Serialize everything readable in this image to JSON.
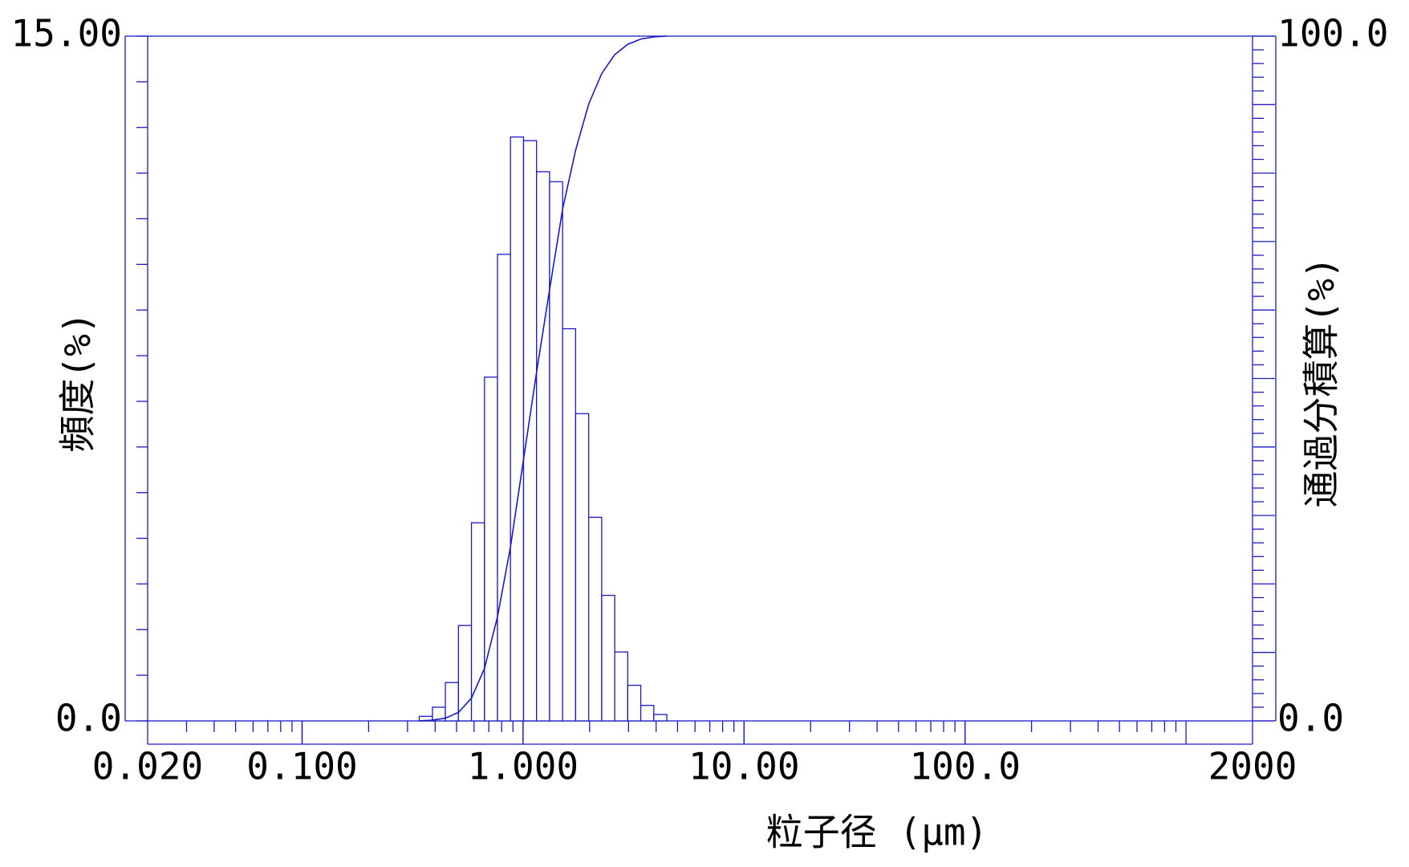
{
  "chart_data": {
    "type": "histogram",
    "xlabel": "粒子径 (μm)",
    "ylabel": "頻度(%)",
    "y2label": "通過分積算(%)",
    "xscale": "log",
    "xlim": [
      0.02,
      2000
    ],
    "xticks": [
      {
        "value": 0.02,
        "label": "0.020"
      },
      {
        "value": 0.1,
        "label": "0.100"
      },
      {
        "value": 1,
        "label": "1.000"
      },
      {
        "value": 10,
        "label": "10.00"
      },
      {
        "value": 100,
        "label": "100.0"
      },
      2000
    ],
    "ylim": [
      0,
      15
    ],
    "yticks": [
      {
        "value": 0,
        "label": "0.0"
      },
      {
        "value": 15,
        "label": "15.00"
      }
    ],
    "yminorticks": [
      0,
      1,
      2,
      3,
      4,
      5,
      6,
      7,
      8,
      9,
      10,
      11,
      12,
      13,
      14,
      15
    ],
    "y2lim": [
      0,
      100
    ],
    "y2ticks": [
      {
        "value": 0,
        "label": "0.0"
      },
      {
        "value": 100,
        "label": "100.0"
      }
    ],
    "y2minorticks": [
      0,
      2,
      4,
      6,
      8,
      10,
      12,
      14,
      16,
      18,
      20,
      22,
      24,
      26,
      28,
      30,
      32,
      34,
      36,
      38,
      40,
      42,
      44,
      46,
      48,
      50,
      52,
      54,
      56,
      58,
      60,
      62,
      64,
      66,
      68,
      70,
      72,
      74,
      76,
      78,
      80,
      82,
      84,
      86,
      88,
      90,
      92,
      94,
      96,
      98,
      100
    ],
    "color": "#1a1ac8",
    "series": [
      {
        "type": "histogram",
        "bins": [
          0.339,
          0.389,
          0.445,
          0.51,
          0.584,
          0.669,
          0.766,
          0.877,
          1.005,
          1.151,
          1.318,
          1.51,
          1.729,
          1.981,
          2.269,
          2.599,
          2.976,
          3.409,
          3.905,
          4.472
        ],
        "values": [
          0.1,
          0.3,
          0.84,
          2.09,
          4.34,
          7.53,
          10.22,
          12.79,
          12.71,
          12.03,
          11.81,
          8.59,
          6.73,
          4.46,
          2.75,
          1.51,
          0.78,
          0.34,
          0.14
        ]
      },
      {
        "type": "line",
        "axis": "y2",
        "x": [
          0.339,
          0.389,
          0.445,
          0.51,
          0.584,
          0.669,
          0.766,
          0.877,
          1.005,
          1.151,
          1.318,
          1.51,
          1.729,
          1.981,
          2.269,
          2.599,
          2.976,
          3.409,
          3.905,
          4.472
        ],
        "values": [
          0,
          0.1,
          0.4,
          1.24,
          3.33,
          7.67,
          15.2,
          25.42,
          38.21,
          50.92,
          62.95,
          74.76,
          83.35,
          90.08,
          94.54,
          97.29,
          98.8,
          99.58,
          99.9,
          100
        ]
      }
    ]
  }
}
